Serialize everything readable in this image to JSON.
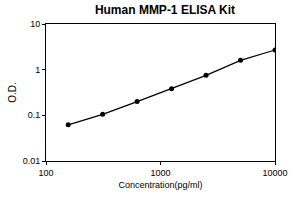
{
  "chart_data": {
    "type": "line",
    "title": "Human MMP-1 ELISA Kit",
    "x_label": "Concentration(pg/ml)",
    "y_label": "O.D.",
    "x": [
      156.25,
      312.5,
      625,
      1250,
      2500,
      5000,
      10000
    ],
    "values": [
      0.062,
      0.105,
      0.2,
      0.38,
      0.75,
      1.6,
      2.7
    ],
    "color": "#000000",
    "marker": "circle",
    "line_style": "solid",
    "log": true,
    "grid": false,
    "xlim": [
      100,
      10000
    ],
    "xticks": [
      100,
      1000,
      10000
    ],
    "ylim": [
      0.01,
      10
    ],
    "yticks": [
      0.01,
      0.1,
      1,
      10
    ]
  }
}
